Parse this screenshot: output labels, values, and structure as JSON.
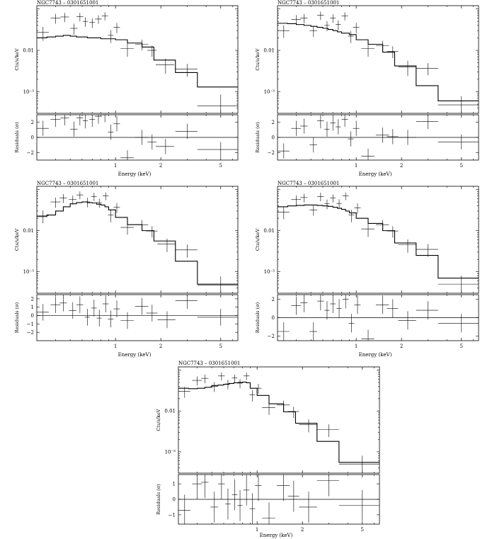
{
  "figure": {
    "title": "NGC7743 – 0301651001"
  },
  "chart_data": [
    {
      "type": "line",
      "title": "NGC7743 – 0301651001",
      "xlabel": "Energy (keV)",
      "ylabel_top": "Cts/s/keV",
      "ylabel_bottom": "Residuals (σ)",
      "xlim": [
        0.3,
        6.5
      ],
      "x_scale": "log",
      "ylim_top": [
        0.0003,
        0.12
      ],
      "y_scale_top": "log",
      "ylim_bottom": [
        -3,
        3
      ],
      "xticks": [
        {
          "v": 1,
          "label": "1"
        },
        {
          "v": 2,
          "label": "2"
        },
        {
          "v": 5,
          "label": "5"
        }
      ],
      "yticks_top": [
        {
          "v": 0.01,
          "label": "0.01"
        },
        {
          "v": 0.001,
          "label": "10⁻³"
        }
      ],
      "yticks_bottom": [
        {
          "v": 2,
          "label": "2"
        },
        {
          "v": 0,
          "label": "0"
        },
        {
          "v": -2,
          "label": "−2"
        }
      ],
      "model": {
        "edges": [
          0.3,
          0.35,
          0.4,
          0.45,
          0.5,
          0.55,
          0.6,
          0.65,
          0.7,
          0.8,
          0.9,
          1.0,
          1.2,
          1.5,
          1.8,
          2.5,
          3.5,
          6.5
        ],
        "values": [
          0.02,
          0.021,
          0.022,
          0.023,
          0.022,
          0.021,
          0.021,
          0.02,
          0.02,
          0.019,
          0.019,
          0.018,
          0.015,
          0.012,
          0.0058,
          0.0029,
          0.0013
        ]
      },
      "data": [
        {
          "x": 0.33,
          "y": 0.027,
          "xe": 0.03,
          "ye": 0.01,
          "r": 1.2
        },
        {
          "x": 0.4,
          "y": 0.06,
          "xe": 0.03,
          "ye": 0.016,
          "r": 2.4
        },
        {
          "x": 0.46,
          "y": 0.064,
          "xe": 0.03,
          "ye": 0.016,
          "r": 2.6
        },
        {
          "x": 0.53,
          "y": 0.034,
          "xe": 0.03,
          "ye": 0.01,
          "r": 1.1
        },
        {
          "x": 0.58,
          "y": 0.065,
          "xe": 0.03,
          "ye": 0.015,
          "r": 2.6
        },
        {
          "x": 0.63,
          "y": 0.05,
          "xe": 0.025,
          "ye": 0.013,
          "r": 2.2
        },
        {
          "x": 0.7,
          "y": 0.047,
          "xe": 0.03,
          "ye": 0.012,
          "r": 2.4
        },
        {
          "x": 0.77,
          "y": 0.057,
          "xe": 0.04,
          "ye": 0.013,
          "r": 2.8
        },
        {
          "x": 0.85,
          "y": 0.068,
          "xe": 0.04,
          "ye": 0.015,
          "r": 3.0
        },
        {
          "x": 0.93,
          "y": 0.023,
          "xe": 0.04,
          "ye": 0.008,
          "r": 0.7
        },
        {
          "x": 1.02,
          "y": 0.036,
          "xe": 0.05,
          "ye": 0.01,
          "r": 1.8
        },
        {
          "x": 1.2,
          "y": 0.011,
          "xe": 0.12,
          "ye": 0.004,
          "r": -2.7
        },
        {
          "x": 1.5,
          "y": 0.014,
          "xe": 0.15,
          "ye": 0.004,
          "r": 0.0
        },
        {
          "x": 1.75,
          "y": 0.01,
          "xe": 0.12,
          "ye": 0.003,
          "r": -0.6
        },
        {
          "x": 2.15,
          "y": 0.0045,
          "xe": 0.3,
          "ye": 0.0018,
          "r": -1.2
        },
        {
          "x": 3.0,
          "y": 0.0035,
          "xe": 0.5,
          "ye": 0.0012,
          "r": 0.8
        },
        {
          "x": 5.0,
          "y": 0.00045,
          "xe": 1.5,
          "ye": 0.0004,
          "r": -1.6
        }
      ]
    },
    {
      "type": "line",
      "title": "NGC7743 – 0301651001",
      "xlabel": "Energy (keV)",
      "ylabel_top": "Cts/s/keV",
      "ylabel_bottom": "Residuals (σ)",
      "xlim": [
        0.3,
        6.5
      ],
      "x_scale": "log",
      "ylim_top": [
        0.0003,
        0.12
      ],
      "y_scale_top": "log",
      "ylim_bottom": [
        -3,
        3
      ],
      "xticks": [
        {
          "v": 1,
          "label": "1"
        },
        {
          "v": 2,
          "label": "2"
        },
        {
          "v": 5,
          "label": "5"
        }
      ],
      "yticks_top": [
        {
          "v": 0.01,
          "label": "0.01"
        },
        {
          "v": 0.001,
          "label": "10⁻³"
        }
      ],
      "yticks_bottom": [
        {
          "v": 2,
          "label": "2"
        },
        {
          "v": 0,
          "label": "0"
        },
        {
          "v": -2,
          "label": "−2"
        }
      ],
      "model": {
        "edges": [
          0.3,
          0.35,
          0.4,
          0.45,
          0.5,
          0.55,
          0.6,
          0.65,
          0.7,
          0.75,
          0.8,
          0.9,
          1.0,
          1.2,
          1.5,
          1.8,
          2.5,
          3.5,
          6.5
        ],
        "values": [
          0.045,
          0.044,
          0.042,
          0.04,
          0.038,
          0.036,
          0.034,
          0.032,
          0.03,
          0.028,
          0.026,
          0.024,
          0.018,
          0.014,
          0.009,
          0.0042,
          0.0014,
          0.0006
        ]
      },
      "data": [
        {
          "x": 0.33,
          "y": 0.03,
          "xe": 0.03,
          "ye": 0.01,
          "r": -1.8
        },
        {
          "x": 0.4,
          "y": 0.056,
          "xe": 0.03,
          "ye": 0.015,
          "r": 1.2
        },
        {
          "x": 0.45,
          "y": 0.06,
          "xe": 0.025,
          "ye": 0.015,
          "r": 1.5
        },
        {
          "x": 0.52,
          "y": 0.03,
          "xe": 0.03,
          "ye": 0.009,
          "r": -1.0
        },
        {
          "x": 0.58,
          "y": 0.07,
          "xe": 0.03,
          "ye": 0.016,
          "r": 2.2
        },
        {
          "x": 0.64,
          "y": 0.04,
          "xe": 0.025,
          "ye": 0.011,
          "r": 1.1
        },
        {
          "x": 0.7,
          "y": 0.06,
          "xe": 0.03,
          "ye": 0.014,
          "r": 1.9
        },
        {
          "x": 0.76,
          "y": 0.042,
          "xe": 0.03,
          "ye": 0.011,
          "r": 1.4
        },
        {
          "x": 0.84,
          "y": 0.068,
          "xe": 0.04,
          "ye": 0.015,
          "r": 2.4
        },
        {
          "x": 0.92,
          "y": 0.022,
          "xe": 0.04,
          "ye": 0.007,
          "r": -0.2
        },
        {
          "x": 1.0,
          "y": 0.036,
          "xe": 0.05,
          "ye": 0.01,
          "r": 1.2
        },
        {
          "x": 1.2,
          "y": 0.011,
          "xe": 0.12,
          "ye": 0.004,
          "r": -2.5
        },
        {
          "x": 1.5,
          "y": 0.013,
          "xe": 0.15,
          "ye": 0.004,
          "r": 0.3
        },
        {
          "x": 1.75,
          "y": 0.0095,
          "xe": 0.15,
          "ye": 0.003,
          "r": 0.1
        },
        {
          "x": 2.2,
          "y": 0.004,
          "xe": 0.3,
          "ye": 0.0016,
          "r": 0.0
        },
        {
          "x": 3.0,
          "y": 0.0037,
          "xe": 0.5,
          "ye": 0.0012,
          "r": 2.1
        },
        {
          "x": 5.0,
          "y": 0.00048,
          "xe": 1.5,
          "ye": 0.0003,
          "r": -0.6
        }
      ]
    },
    {
      "type": "line",
      "title": "NGC7743 – 0301651001",
      "xlabel": "Energy (keV)",
      "ylabel_top": "Cts/s/keV",
      "ylabel_bottom": "Residuals (σ)",
      "xlim": [
        0.3,
        6.5
      ],
      "x_scale": "log",
      "ylim_top": [
        0.0003,
        0.12
      ],
      "y_scale_top": "log",
      "ylim_bottom": [
        -3,
        2.5
      ],
      "xticks": [
        {
          "v": 1,
          "label": "1"
        },
        {
          "v": 2,
          "label": "2"
        },
        {
          "v": 5,
          "label": "5"
        }
      ],
      "yticks_top": [
        {
          "v": 0.01,
          "label": "0.01"
        },
        {
          "v": 0.001,
          "label": "10⁻³"
        }
      ],
      "yticks_bottom": [
        {
          "v": 2,
          "label": "2"
        },
        {
          "v": 1,
          "label": "1"
        },
        {
          "v": 0,
          "label": "0"
        },
        {
          "v": -1,
          "label": "−1"
        },
        {
          "v": -2,
          "label": "−2"
        }
      ],
      "model": {
        "edges": [
          0.3,
          0.35,
          0.4,
          0.45,
          0.5,
          0.55,
          0.6,
          0.65,
          0.7,
          0.75,
          0.8,
          0.85,
          0.9,
          1.0,
          1.2,
          1.5,
          1.8,
          2.5,
          3.5,
          6.5
        ],
        "values": [
          0.022,
          0.024,
          0.03,
          0.038,
          0.045,
          0.048,
          0.05,
          0.048,
          0.047,
          0.044,
          0.042,
          0.038,
          0.032,
          0.021,
          0.014,
          0.01,
          0.0056,
          0.0018,
          0.0005
        ]
      },
      "data": [
        {
          "x": 0.33,
          "y": 0.023,
          "xe": 0.03,
          "ye": 0.008,
          "r": 0.4
        },
        {
          "x": 0.4,
          "y": 0.05,
          "xe": 0.03,
          "ye": 0.014,
          "r": 1.3
        },
        {
          "x": 0.45,
          "y": 0.062,
          "xe": 0.025,
          "ye": 0.015,
          "r": 1.5
        },
        {
          "x": 0.52,
          "y": 0.057,
          "xe": 0.03,
          "ye": 0.014,
          "r": 0.6
        },
        {
          "x": 0.58,
          "y": 0.074,
          "xe": 0.03,
          "ye": 0.016,
          "r": 1.3
        },
        {
          "x": 0.65,
          "y": 0.05,
          "xe": 0.025,
          "ye": 0.013,
          "r": -0.2
        },
        {
          "x": 0.72,
          "y": 0.068,
          "xe": 0.03,
          "ye": 0.015,
          "r": 0.9
        },
        {
          "x": 0.78,
          "y": 0.048,
          "xe": 0.03,
          "ye": 0.012,
          "r": -0.3
        },
        {
          "x": 0.86,
          "y": 0.07,
          "xe": 0.04,
          "ye": 0.015,
          "r": 1.4
        },
        {
          "x": 0.93,
          "y": 0.024,
          "xe": 0.04,
          "ye": 0.008,
          "r": -0.4
        },
        {
          "x": 1.02,
          "y": 0.037,
          "xe": 0.05,
          "ye": 0.01,
          "r": 0.8
        },
        {
          "x": 1.2,
          "y": 0.012,
          "xe": 0.12,
          "ye": 0.004,
          "r": -0.6
        },
        {
          "x": 1.5,
          "y": 0.014,
          "xe": 0.15,
          "ye": 0.004,
          "r": 1.1
        },
        {
          "x": 1.75,
          "y": 0.0098,
          "xe": 0.15,
          "ye": 0.003,
          "r": 0.3
        },
        {
          "x": 2.2,
          "y": 0.0047,
          "xe": 0.3,
          "ye": 0.0017,
          "r": -0.5
        },
        {
          "x": 3.0,
          "y": 0.0034,
          "xe": 0.5,
          "ye": 0.0012,
          "r": 1.8
        },
        {
          "x": 5.0,
          "y": 0.00047,
          "xe": 1.5,
          "ye": 0.0003,
          "r": -0.2
        }
      ]
    },
    {
      "type": "line",
      "title": "NGC7743 – 0301651001",
      "xlabel": "Energy (keV)",
      "ylabel_top": "Cts/s/keV",
      "ylabel_bottom": "Residuals (σ)",
      "xlim": [
        0.3,
        6.5
      ],
      "x_scale": "log",
      "ylim_top": [
        0.0003,
        0.12
      ],
      "y_scale_top": "log",
      "ylim_bottom": [
        -2.5,
        2.5
      ],
      "xticks": [
        {
          "v": 1,
          "label": "1"
        },
        {
          "v": 2,
          "label": "2"
        },
        {
          "v": 5,
          "label": "5"
        }
      ],
      "yticks_top": [
        {
          "v": 0.01,
          "label": "0.01"
        },
        {
          "v": 0.001,
          "label": "10⁻³"
        }
      ],
      "yticks_bottom": [
        {
          "v": 2,
          "label": "2"
        },
        {
          "v": 0,
          "label": "0"
        },
        {
          "v": -2,
          "label": "−2"
        }
      ],
      "model": {
        "edges": [
          0.3,
          0.35,
          0.4,
          0.45,
          0.5,
          0.55,
          0.6,
          0.65,
          0.7,
          0.75,
          0.8,
          0.85,
          0.9,
          1.0,
          1.2,
          1.5,
          1.8,
          2.5,
          3.5,
          6.5
        ],
        "values": [
          0.038,
          0.04,
          0.041,
          0.042,
          0.042,
          0.041,
          0.04,
          0.039,
          0.037,
          0.035,
          0.033,
          0.03,
          0.027,
          0.02,
          0.015,
          0.01,
          0.005,
          0.0025,
          0.0007
        ]
      },
      "data": [
        {
          "x": 0.33,
          "y": 0.028,
          "xe": 0.03,
          "ye": 0.009,
          "r": -1.5
        },
        {
          "x": 0.4,
          "y": 0.057,
          "xe": 0.03,
          "ye": 0.015,
          "r": 1.3
        },
        {
          "x": 0.45,
          "y": 0.064,
          "xe": 0.025,
          "ye": 0.015,
          "r": 1.6
        },
        {
          "x": 0.52,
          "y": 0.032,
          "xe": 0.03,
          "ye": 0.009,
          "r": -1.5
        },
        {
          "x": 0.58,
          "y": 0.068,
          "xe": 0.03,
          "ye": 0.016,
          "r": 1.8
        },
        {
          "x": 0.64,
          "y": 0.045,
          "xe": 0.025,
          "ye": 0.012,
          "r": 0.8
        },
        {
          "x": 0.7,
          "y": 0.062,
          "xe": 0.03,
          "ye": 0.014,
          "r": 1.5
        },
        {
          "x": 0.77,
          "y": 0.046,
          "xe": 0.03,
          "ye": 0.012,
          "r": 1.0
        },
        {
          "x": 0.85,
          "y": 0.07,
          "xe": 0.04,
          "ye": 0.015,
          "r": 2.0
        },
        {
          "x": 0.93,
          "y": 0.024,
          "xe": 0.04,
          "ye": 0.008,
          "r": -0.6
        },
        {
          "x": 1.02,
          "y": 0.036,
          "xe": 0.05,
          "ye": 0.01,
          "r": 1.4
        },
        {
          "x": 1.2,
          "y": 0.011,
          "xe": 0.12,
          "ye": 0.004,
          "r": -2.3
        },
        {
          "x": 1.5,
          "y": 0.014,
          "xe": 0.15,
          "ye": 0.004,
          "r": 1.4
        },
        {
          "x": 1.75,
          "y": 0.0098,
          "xe": 0.15,
          "ye": 0.003,
          "r": 1.0
        },
        {
          "x": 2.2,
          "y": 0.0045,
          "xe": 0.3,
          "ye": 0.0016,
          "r": -0.3
        },
        {
          "x": 3.0,
          "y": 0.0035,
          "xe": 0.5,
          "ye": 0.0012,
          "r": 0.8
        },
        {
          "x": 5.0,
          "y": 0.0005,
          "xe": 1.5,
          "ye": 0.0003,
          "r": -0.6
        }
      ]
    },
    {
      "type": "line",
      "title": "NGC7743 – 0301651001",
      "xlabel": "Energy (keV)",
      "ylabel_top": "Cts/s/keV",
      "ylabel_bottom": "Residuals (σ)",
      "xlim": [
        0.3,
        6.5
      ],
      "x_scale": "log",
      "ylim_top": [
        0.0003,
        0.12
      ],
      "y_scale_top": "log",
      "ylim_bottom": [
        -1.6,
        1.6
      ],
      "xticks": [
        {
          "v": 1,
          "label": "1"
        },
        {
          "v": 2,
          "label": "2"
        },
        {
          "v": 5,
          "label": "5"
        }
      ],
      "yticks_top": [
        {
          "v": 0.01,
          "label": "0.01"
        },
        {
          "v": 0.001,
          "label": "10⁻³"
        }
      ],
      "yticks_bottom": [
        {
          "v": 1,
          "label": "1"
        },
        {
          "v": 0,
          "label": "0"
        },
        {
          "v": -1,
          "label": "−1"
        }
      ],
      "model": {
        "edges": [
          0.3,
          0.35,
          0.4,
          0.45,
          0.5,
          0.55,
          0.6,
          0.65,
          0.7,
          0.75,
          0.8,
          0.85,
          0.9,
          1.0,
          1.2,
          1.5,
          1.8,
          2.5,
          3.5,
          6.5
        ],
        "values": [
          0.036,
          0.035,
          0.036,
          0.038,
          0.042,
          0.043,
          0.045,
          0.047,
          0.049,
          0.05,
          0.051,
          0.049,
          0.036,
          0.024,
          0.015,
          0.0095,
          0.005,
          0.0018,
          0.00055
        ]
      },
      "data": [
        {
          "x": 0.33,
          "y": 0.03,
          "xe": 0.03,
          "ye": 0.009,
          "r": -0.7
        },
        {
          "x": 0.4,
          "y": 0.056,
          "xe": 0.03,
          "ye": 0.014,
          "r": 1.0
        },
        {
          "x": 0.45,
          "y": 0.063,
          "xe": 0.025,
          "ye": 0.015,
          "r": 1.1
        },
        {
          "x": 0.52,
          "y": 0.04,
          "xe": 0.03,
          "ye": 0.011,
          "r": -0.5
        },
        {
          "x": 0.58,
          "y": 0.072,
          "xe": 0.03,
          "ye": 0.016,
          "r": 1.0
        },
        {
          "x": 0.64,
          "y": 0.046,
          "xe": 0.025,
          "ye": 0.012,
          "r": -0.3
        },
        {
          "x": 0.71,
          "y": 0.064,
          "xe": 0.03,
          "ye": 0.014,
          "r": 0.3
        },
        {
          "x": 0.77,
          "y": 0.048,
          "xe": 0.03,
          "ye": 0.012,
          "r": -0.4
        },
        {
          "x": 0.85,
          "y": 0.072,
          "xe": 0.04,
          "ye": 0.015,
          "r": 0.6
        },
        {
          "x": 0.93,
          "y": 0.025,
          "xe": 0.04,
          "ye": 0.008,
          "r": -0.6
        },
        {
          "x": 1.02,
          "y": 0.036,
          "xe": 0.05,
          "ye": 0.01,
          "r": 0.9
        },
        {
          "x": 1.2,
          "y": 0.012,
          "xe": 0.12,
          "ye": 0.004,
          "r": -1.2
        },
        {
          "x": 1.5,
          "y": 0.014,
          "xe": 0.15,
          "ye": 0.004,
          "r": 0.9
        },
        {
          "x": 1.75,
          "y": 0.0097,
          "xe": 0.15,
          "ye": 0.003,
          "r": 0.2
        },
        {
          "x": 2.2,
          "y": 0.0046,
          "xe": 0.3,
          "ye": 0.0016,
          "r": -0.5
        },
        {
          "x": 3.0,
          "y": 0.0035,
          "xe": 0.5,
          "ye": 0.0012,
          "r": 1.2
        },
        {
          "x": 5.0,
          "y": 0.0005,
          "xe": 1.5,
          "ye": 0.0003,
          "r": -0.4
        }
      ]
    }
  ]
}
